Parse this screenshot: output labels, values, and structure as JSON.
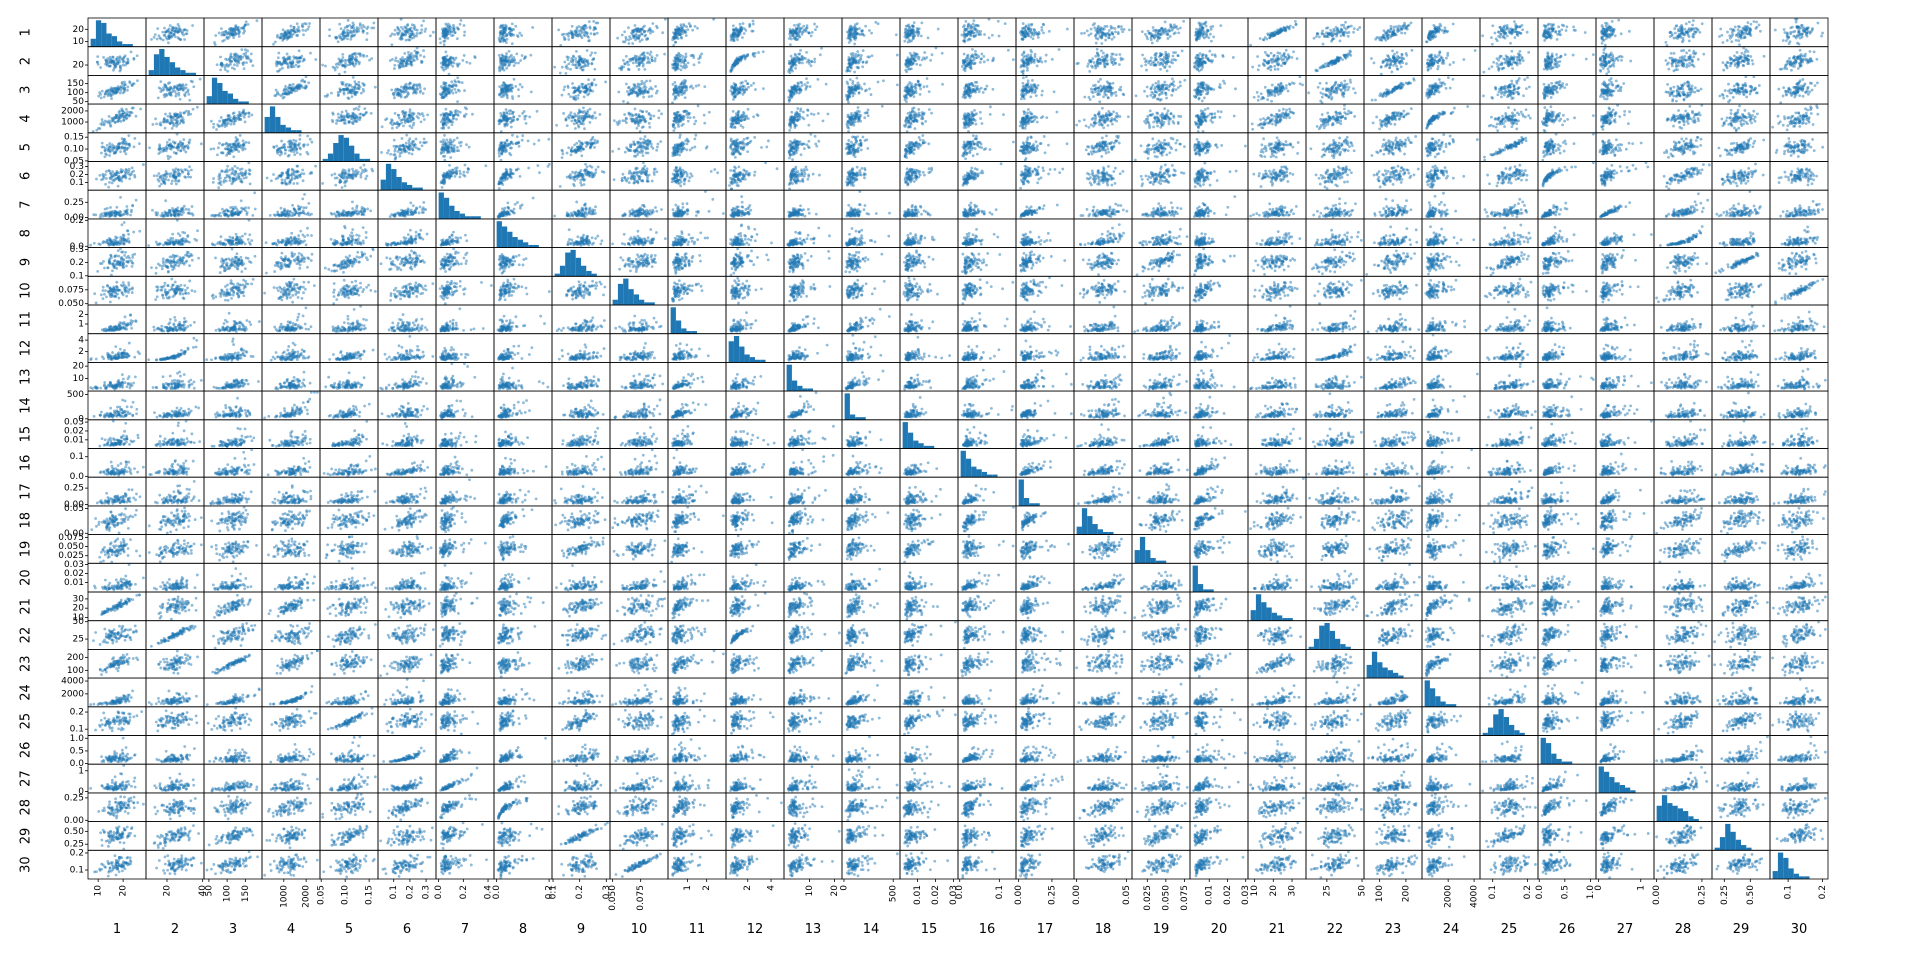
{
  "chart_data": {
    "type": "scatter",
    "kind": "scatter_matrix",
    "title": "",
    "diagonal": "histogram",
    "marker_color": "#1f77b4",
    "marker_alpha": 0.5,
    "variables": [
      "1",
      "2",
      "3",
      "4",
      "5",
      "6",
      "7",
      "8",
      "9",
      "10",
      "11",
      "12",
      "13",
      "14",
      "15",
      "16",
      "17",
      "18",
      "19",
      "20",
      "21",
      "22",
      "23",
      "24",
      "25",
      "26",
      "27",
      "28",
      "29",
      "30"
    ],
    "ranges": [
      [
        6.98,
        28.11
      ],
      [
        9.71,
        39.28
      ],
      [
        43.79,
        188.5
      ],
      [
        143.5,
        2501.0
      ],
      [
        0.053,
        0.163
      ],
      [
        0.019,
        0.345
      ],
      [
        0.0,
        0.427
      ],
      [
        0.0,
        0.201
      ],
      [
        0.106,
        0.304
      ],
      [
        0.05,
        0.097
      ],
      [
        0.112,
        2.873
      ],
      [
        0.36,
        4.885
      ],
      [
        0.757,
        21.98
      ],
      [
        6.802,
        542.2
      ],
      [
        0.0017,
        0.0311
      ],
      [
        0.0023,
        0.1354
      ],
      [
        0.0,
        0.396
      ],
      [
        0.0,
        0.0528
      ],
      [
        0.0079,
        0.079
      ],
      [
        0.0009,
        0.0298
      ],
      [
        7.93,
        36.04
      ],
      [
        12.02,
        49.54
      ],
      [
        50.41,
        251.2
      ],
      [
        185.2,
        4254.0
      ],
      [
        0.071,
        0.223
      ],
      [
        0.027,
        1.058
      ],
      [
        0.0,
        1.252
      ],
      [
        0.0,
        0.291
      ],
      [
        0.157,
        0.664
      ],
      [
        0.055,
        0.208
      ]
    ],
    "y_ticks": [
      {
        "values": [
          10,
          20
        ],
        "labels": [
          "10",
          "20"
        ]
      },
      {
        "values": [
          20
        ],
        "labels": [
          "20"
        ]
      },
      {
        "values": [
          50,
          100,
          150
        ],
        "labels": [
          "50",
          "100",
          "150"
        ]
      },
      {
        "values": [
          1000,
          2000
        ],
        "labels": [
          "1000",
          "2000"
        ]
      },
      {
        "values": [
          0.05,
          0.1,
          0.15
        ],
        "labels": [
          "0.05",
          "0.10",
          "0.15"
        ]
      },
      {
        "values": [
          0.1,
          0.2,
          0.3
        ],
        "labels": [
          "0.1",
          "0.2",
          "0.3"
        ]
      },
      {
        "values": [
          0.0,
          0.25
        ],
        "labels": [
          "0.00",
          "0.25"
        ]
      },
      {
        "values": [
          0.0,
          0.2
        ],
        "labels": [
          "0.0",
          "0.2"
        ]
      },
      {
        "values": [
          0.1,
          0.2,
          0.3
        ],
        "labels": [
          "0.1",
          "0.2",
          "0.3"
        ]
      },
      {
        "values": [
          0.05,
          0.075
        ],
        "labels": [
          "0.050",
          "0.075"
        ]
      },
      {
        "values": [
          1,
          2
        ],
        "labels": [
          "1",
          "2"
        ]
      },
      {
        "values": [
          2,
          4
        ],
        "labels": [
          "2",
          "4"
        ]
      },
      {
        "values": [
          10,
          20
        ],
        "labels": [
          "10",
          "20"
        ]
      },
      {
        "values": [
          0,
          500
        ],
        "labels": [
          "0",
          "500"
        ]
      },
      {
        "values": [
          0.01,
          0.02,
          0.03
        ],
        "labels": [
          "0.01",
          "0.02",
          "0.03"
        ]
      },
      {
        "values": [
          0.0,
          0.1
        ],
        "labels": [
          "0.0",
          "0.1"
        ]
      },
      {
        "values": [
          0.0,
          0.25
        ],
        "labels": [
          "0.00",
          "0.25"
        ]
      },
      {
        "values": [
          0.0,
          0.05
        ],
        "labels": [
          "0.00",
          "0.05"
        ]
      },
      {
        "values": [
          0.025,
          0.05,
          0.075
        ],
        "labels": [
          "0.025",
          "0.050",
          "0.075"
        ]
      },
      {
        "values": [
          0.01,
          0.02,
          0.03
        ],
        "labels": [
          "0.01",
          "0.02",
          "0.03"
        ]
      },
      {
        "values": [
          10,
          20,
          30
        ],
        "labels": [
          "10",
          "20",
          "30"
        ]
      },
      {
        "values": [
          25,
          50
        ],
        "labels": [
          "25",
          "50"
        ]
      },
      {
        "values": [
          100,
          200
        ],
        "labels": [
          "100",
          "200"
        ]
      },
      {
        "values": [
          2000,
          4000
        ],
        "labels": [
          "2000",
          "4000"
        ]
      },
      {
        "values": [
          0.1,
          0.2
        ],
        "labels": [
          "0.1",
          "0.2"
        ]
      },
      {
        "values": [
          0.0,
          0.5,
          1.0
        ],
        "labels": [
          "0.0",
          "0.5",
          "1.0"
        ]
      },
      {
        "values": [
          0,
          1
        ],
        "labels": [
          "0",
          "1"
        ]
      },
      {
        "values": [
          0.0,
          0.25
        ],
        "labels": [
          "0.00",
          "0.25"
        ]
      },
      {
        "values": [
          0.25,
          0.5
        ],
        "labels": [
          "0.25",
          "0.50"
        ]
      },
      {
        "values": [
          0.1,
          0.2
        ],
        "labels": [
          "0.1",
          "0.2"
        ]
      }
    ],
    "x_ticks": [
      {
        "values": [
          10,
          20
        ],
        "labels": [
          "10",
          "20"
        ]
      },
      {
        "values": [
          20,
          40
        ],
        "labels": [
          "20",
          "40"
        ]
      },
      {
        "values": [
          50,
          100,
          150
        ],
        "labels": [
          "50",
          "100",
          "150"
        ]
      },
      {
        "values": [
          1000,
          2000
        ],
        "labels": [
          "1000",
          "2000"
        ]
      },
      {
        "values": [
          0.05,
          0.1,
          0.15
        ],
        "labels": [
          "0.05",
          "0.10",
          "0.15"
        ]
      },
      {
        "values": [
          0.1,
          0.2,
          0.3
        ],
        "labels": [
          "0.1",
          "0.2",
          "0.3"
        ]
      },
      {
        "values": [
          0.0,
          0.2,
          0.4
        ],
        "labels": [
          "0.0",
          "0.2",
          "0.4"
        ]
      },
      {
        "values": [
          0.0,
          0.2
        ],
        "labels": [
          "0.0",
          "0.2"
        ]
      },
      {
        "values": [
          0.1,
          0.2,
          0.3
        ],
        "labels": [
          "0.1",
          "0.2",
          "0.3"
        ]
      },
      {
        "values": [
          0.05,
          0.075
        ],
        "labels": [
          "0.050",
          "0.075"
        ]
      },
      {
        "values": [
          1,
          2
        ],
        "labels": [
          "1",
          "2"
        ]
      },
      {
        "values": [
          2,
          4
        ],
        "labels": [
          "2",
          "4"
        ]
      },
      {
        "values": [
          10,
          20
        ],
        "labels": [
          "10",
          "20"
        ]
      },
      {
        "values": [
          0,
          500
        ],
        "labels": [
          "0",
          "500"
        ]
      },
      {
        "values": [
          0.01,
          0.02,
          0.03
        ],
        "labels": [
          "0.01",
          "0.02",
          "0.03"
        ]
      },
      {
        "values": [
          0.0,
          0.1
        ],
        "labels": [
          "0.0",
          "0.1"
        ]
      },
      {
        "values": [
          0.0,
          0.25
        ],
        "labels": [
          "0.00",
          "0.25"
        ]
      },
      {
        "values": [
          0.0,
          0.05
        ],
        "labels": [
          "0.00",
          "0.05"
        ]
      },
      {
        "values": [
          0.025,
          0.05,
          0.075
        ],
        "labels": [
          "0.025",
          "0.050",
          "0.075"
        ]
      },
      {
        "values": [
          0.01,
          0.02,
          0.03
        ],
        "labels": [
          "0.01",
          "0.02",
          "0.03"
        ]
      },
      {
        "values": [
          10,
          20,
          30
        ],
        "labels": [
          "10",
          "20",
          "30"
        ]
      },
      {
        "values": [
          25,
          50
        ],
        "labels": [
          "25",
          "50"
        ]
      },
      {
        "values": [
          100,
          200
        ],
        "labels": [
          "100",
          "200"
        ]
      },
      {
        "values": [
          2000,
          4000
        ],
        "labels": [
          "2000",
          "4000"
        ]
      },
      {
        "values": [
          0.1,
          0.2
        ],
        "labels": [
          "0.1",
          "0.2"
        ]
      },
      {
        "values": [
          0.0,
          0.5,
          1.0
        ],
        "labels": [
          "0.0",
          "0.5",
          "1.0"
        ]
      },
      {
        "values": [
          0,
          1
        ],
        "labels": [
          "0",
          "1"
        ]
      },
      {
        "values": [
          0.0,
          0.25
        ],
        "labels": [
          "0.00",
          "0.25"
        ]
      },
      {
        "values": [
          0.25,
          0.5
        ],
        "labels": [
          "0.25",
          "0.50"
        ]
      },
      {
        "values": [
          0.1,
          0.2
        ],
        "labels": [
          "0.1",
          "0.2"
        ]
      }
    ],
    "diagonal_histograms": [
      [
        3,
        10,
        9,
        5,
        4,
        2,
        1,
        1,
        0,
        0
      ],
      [
        2,
        8,
        10,
        7,
        5,
        3,
        2,
        1,
        1,
        0
      ],
      [
        3,
        10,
        8,
        5,
        4,
        2,
        1,
        1,
        0,
        0
      ],
      [
        6,
        10,
        6,
        3,
        2,
        1,
        1,
        0,
        0,
        0
      ],
      [
        1,
        3,
        7,
        10,
        9,
        6,
        3,
        1,
        1,
        0
      ],
      [
        4,
        10,
        8,
        5,
        3,
        2,
        1,
        1,
        0,
        0
      ],
      [
        10,
        8,
        5,
        3,
        2,
        1,
        1,
        1,
        0,
        0
      ],
      [
        10,
        8,
        6,
        4,
        3,
        2,
        1,
        1,
        0,
        0
      ],
      [
        1,
        4,
        9,
        10,
        7,
        4,
        2,
        1,
        0,
        0
      ],
      [
        2,
        8,
        10,
        6,
        4,
        2,
        1,
        1,
        0,
        0
      ],
      [
        10,
        5,
        2,
        1,
        1,
        0,
        0,
        0,
        0,
        0
      ],
      [
        8,
        10,
        6,
        3,
        2,
        1,
        1,
        0,
        0,
        0
      ],
      [
        10,
        4,
        2,
        1,
        1,
        0,
        0,
        0,
        0,
        0
      ],
      [
        10,
        2,
        1,
        1,
        0,
        0,
        0,
        0,
        0,
        0
      ],
      [
        10,
        6,
        3,
        2,
        1,
        1,
        0,
        0,
        0,
        0
      ],
      [
        10,
        7,
        4,
        3,
        2,
        1,
        1,
        0,
        0,
        0
      ],
      [
        10,
        3,
        1,
        1,
        0,
        0,
        0,
        0,
        0,
        0
      ],
      [
        3,
        10,
        7,
        4,
        2,
        1,
        1,
        0,
        0,
        0
      ],
      [
        5,
        10,
        5,
        2,
        1,
        1,
        0,
        0,
        0,
        0
      ],
      [
        10,
        3,
        1,
        1,
        0,
        0,
        0,
        0,
        0,
        0
      ],
      [
        4,
        10,
        7,
        5,
        3,
        2,
        1,
        1,
        0,
        0
      ],
      [
        1,
        4,
        9,
        10,
        7,
        4,
        2,
        1,
        0,
        0
      ],
      [
        5,
        10,
        6,
        4,
        3,
        2,
        1,
        0,
        0,
        0
      ],
      [
        10,
        7,
        4,
        2,
        1,
        1,
        0,
        0,
        0,
        0
      ],
      [
        1,
        3,
        8,
        10,
        7,
        4,
        2,
        1,
        0,
        0
      ],
      [
        10,
        8,
        4,
        2,
        1,
        1,
        0,
        0,
        0,
        0
      ],
      [
        10,
        8,
        6,
        4,
        3,
        2,
        1,
        0,
        0,
        0
      ],
      [
        6,
        10,
        7,
        6,
        5,
        4,
        2,
        1,
        0,
        0
      ],
      [
        1,
        5,
        10,
        7,
        4,
        2,
        1,
        0,
        0,
        0
      ],
      [
        3,
        10,
        8,
        4,
        2,
        1,
        1,
        0,
        0,
        0
      ]
    ]
  }
}
